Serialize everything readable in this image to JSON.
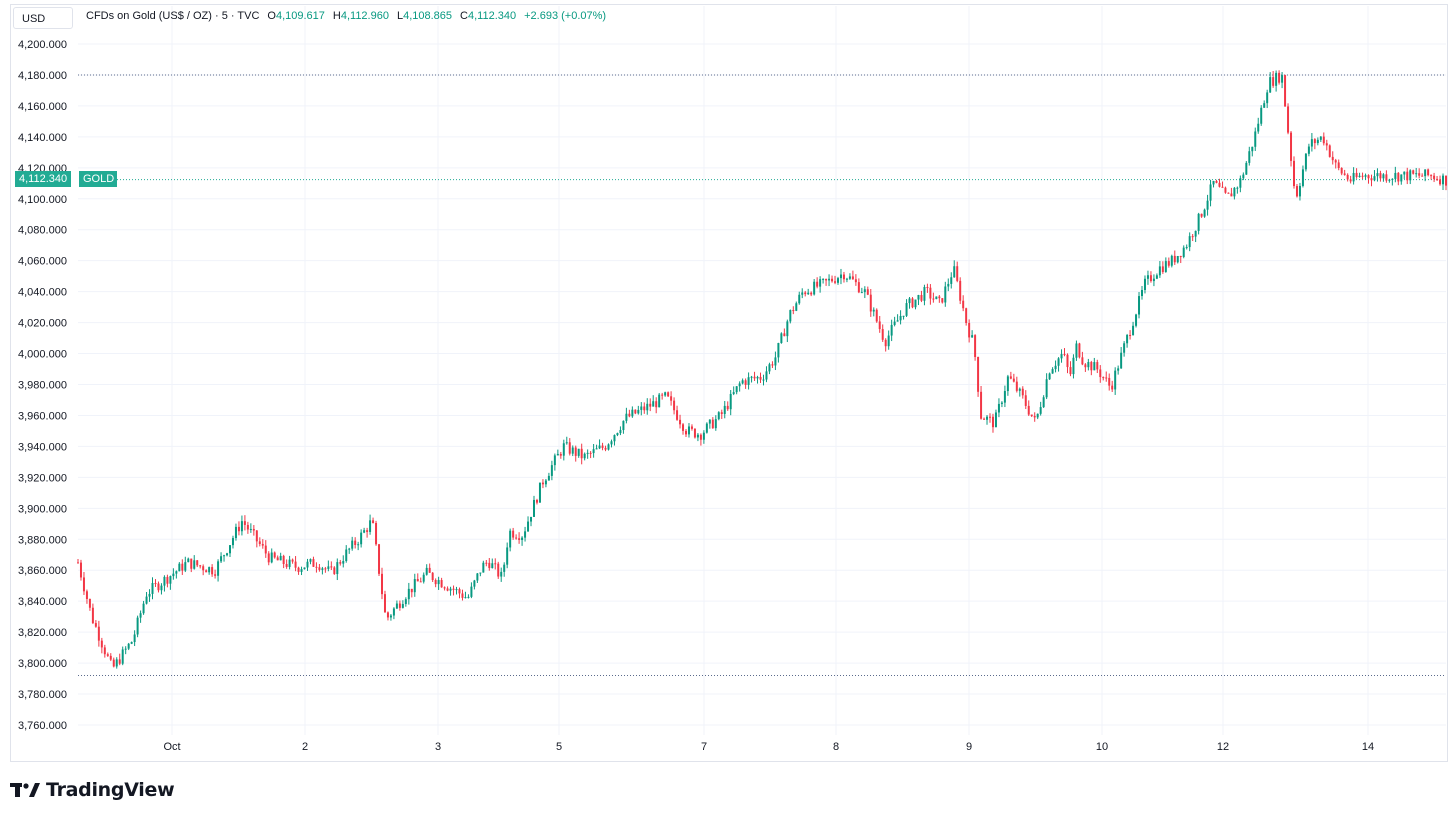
{
  "header": {
    "currency_button": "USD",
    "symbol_title": "CFDs on Gold (US$ / OZ) · 5 · TVC",
    "open_key": "O",
    "open_val": "4,109.617",
    "high_key": "H",
    "high_val": "4,112.960",
    "low_key": "L",
    "low_val": "4,108.865",
    "close_key": "C",
    "close_val": "4,112.340",
    "change": "+2.693 (+0.07%)"
  },
  "price_tag": {
    "value": "4,112.340",
    "symbol": "GOLD"
  },
  "branding": {
    "name": "TradingView"
  },
  "colors": {
    "up": "#089981",
    "down": "#f23645",
    "grid": "#f0f3fa",
    "price_line": "#22ab94"
  },
  "chart_data": {
    "type": "candlestick",
    "title": "CFDs on Gold (US$ / OZ) · 5 · TVC",
    "ylim": [
      3750,
      4210
    ],
    "y_ticks": [
      "4,200.000",
      "4,180.000",
      "4,160.000",
      "4,140.000",
      "4,120.000",
      "4,100.000",
      "4,080.000",
      "4,060.000",
      "4,040.000",
      "4,020.000",
      "4,000.000",
      "3,980.000",
      "3,960.000",
      "3,940.000",
      "3,920.000",
      "3,900.000",
      "3,880.000",
      "3,860.000",
      "3,840.000",
      "3,820.000",
      "3,800.000",
      "3,780.000",
      "3,760.000"
    ],
    "x_ticks": [
      "Oct",
      "2",
      "3",
      "5",
      "7",
      "8",
      "9",
      "10",
      "12",
      "14"
    ],
    "last_price": 4112.34,
    "high_line": 4180,
    "low_line": 3792,
    "series": [
      {
        "name": "GOLD",
        "x": [
          0,
          0.01,
          0.025,
          0.04,
          0.05,
          0.065,
          0.08,
          0.1,
          0.12,
          0.14,
          0.16,
          0.175,
          0.185,
          0.195,
          0.205,
          0.215,
          0.225,
          0.24,
          0.255,
          0.27,
          0.285,
          0.295,
          0.3,
          0.31,
          0.315,
          0.325,
          0.34,
          0.355,
          0.37,
          0.385,
          0.4,
          0.415,
          0.43,
          0.445,
          0.455,
          0.47,
          0.485,
          0.5,
          0.51,
          0.52,
          0.53,
          0.545,
          0.56,
          0.575,
          0.59,
          0.605,
          0.62,
          0.63,
          0.64,
          0.65,
          0.655,
          0.66,
          0.67,
          0.68,
          0.69,
          0.7,
          0.71,
          0.72,
          0.725,
          0.73,
          0.735,
          0.745,
          0.755,
          0.765,
          0.78,
          0.79,
          0.8,
          0.81,
          0.82,
          0.83,
          0.84,
          0.85,
          0.86,
          0.87,
          0.88,
          0.89,
          0.9,
          0.91,
          0.92,
          0.93,
          0.94,
          0.945,
          0.95,
          0.955,
          0.96,
          0.97,
          0.975,
          0.98,
          0.99,
          1.0
        ],
        "y": [
          3865,
          3830,
          3796,
          3815,
          3845,
          3855,
          3865,
          3860,
          3892,
          3868,
          3862,
          3865,
          3858,
          3870,
          3880,
          3892,
          3828,
          3845,
          3858,
          3850,
          3842,
          3862,
          3866,
          3855,
          3885,
          3883,
          3918,
          3940,
          3933,
          3940,
          3958,
          3965,
          3972,
          3950,
          3948,
          3960,
          3982,
          3985,
          3998,
          4025,
          4040,
          4045,
          4052,
          4040,
          4008,
          4030,
          4040,
          4032,
          4055,
          4018,
          4005,
          3960,
          3955,
          3985,
          3972,
          3955,
          3990,
          4000,
          3985,
          4005,
          3995,
          3990,
          3978,
          4005,
          4045,
          4055,
          4060,
          4070,
          4088,
          4110,
          4100,
          4112,
          4140,
          4175,
          4180,
          4100,
          4135,
          4140,
          4120,
          4112,
          4115,
          4115,
          4115,
          4115,
          4115,
          4115,
          4115,
          4115,
          4115,
          4112
        ]
      }
    ]
  }
}
